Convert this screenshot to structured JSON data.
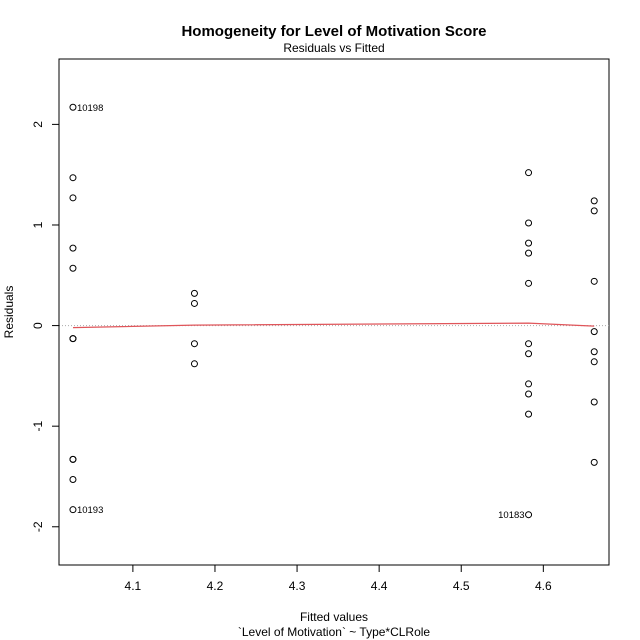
{
  "chart_data": {
    "type": "scatter",
    "title": "Homogeneity for Level of Motivation Score",
    "subtitle": "Residuals vs Fitted",
    "xlabel": "Fitted values",
    "xlabel_sub": "`Level of Motivation` ~ Type*CLRole",
    "ylabel": "Residuals",
    "xlim": [
      4.01,
      4.68
    ],
    "ylim": [
      -2.38,
      2.65
    ],
    "xticks": [
      4.1,
      4.2,
      4.3,
      4.4,
      4.5,
      4.6
    ],
    "xtick_labels": [
      "4.1",
      "4.2",
      "4.3",
      "4.4",
      "4.5",
      "4.6"
    ],
    "yticks": [
      -2,
      -1,
      0,
      1,
      2
    ],
    "ytick_labels": [
      "-2",
      "-1",
      "0",
      "1",
      "2"
    ],
    "zero_line": 0,
    "colors": {
      "smooth": "#e0555a",
      "zero_line": "#aaaaaa",
      "points": "#000000"
    },
    "points": [
      {
        "x": 4.027,
        "y": 2.17,
        "label": "10198"
      },
      {
        "x": 4.027,
        "y": 1.47
      },
      {
        "x": 4.027,
        "y": 1.27
      },
      {
        "x": 4.027,
        "y": 0.77
      },
      {
        "x": 4.027,
        "y": 0.57
      },
      {
        "x": 4.027,
        "y": -0.13
      },
      {
        "x": 4.027,
        "y": -0.13
      },
      {
        "x": 4.027,
        "y": -1.33
      },
      {
        "x": 4.027,
        "y": -1.33
      },
      {
        "x": 4.027,
        "y": -1.53
      },
      {
        "x": 4.027,
        "y": -1.83,
        "label": "10193"
      },
      {
        "x": 4.175,
        "y": 0.32
      },
      {
        "x": 4.175,
        "y": 0.22
      },
      {
        "x": 4.175,
        "y": -0.18
      },
      {
        "x": 4.175,
        "y": -0.38
      },
      {
        "x": 4.582,
        "y": 1.52
      },
      {
        "x": 4.582,
        "y": 1.02
      },
      {
        "x": 4.582,
        "y": 0.82
      },
      {
        "x": 4.582,
        "y": 0.72
      },
      {
        "x": 4.582,
        "y": 0.42
      },
      {
        "x": 4.582,
        "y": -0.18
      },
      {
        "x": 4.582,
        "y": -0.28
      },
      {
        "x": 4.582,
        "y": -0.58
      },
      {
        "x": 4.582,
        "y": -0.68
      },
      {
        "x": 4.582,
        "y": -0.88
      },
      {
        "x": 4.582,
        "y": -1.88,
        "label": "10183"
      },
      {
        "x": 4.662,
        "y": 1.24
      },
      {
        "x": 4.662,
        "y": 1.14
      },
      {
        "x": 4.662,
        "y": 0.44
      },
      {
        "x": 4.662,
        "y": -0.06
      },
      {
        "x": 4.662,
        "y": -0.26
      },
      {
        "x": 4.662,
        "y": -0.36
      },
      {
        "x": 4.662,
        "y": -0.76
      },
      {
        "x": 4.662,
        "y": -1.36
      }
    ],
    "smooth_line": [
      {
        "x": 4.027,
        "y": -0.02
      },
      {
        "x": 4.175,
        "y": 0.005
      },
      {
        "x": 4.582,
        "y": 0.025
      },
      {
        "x": 4.662,
        "y": -0.005
      }
    ]
  }
}
